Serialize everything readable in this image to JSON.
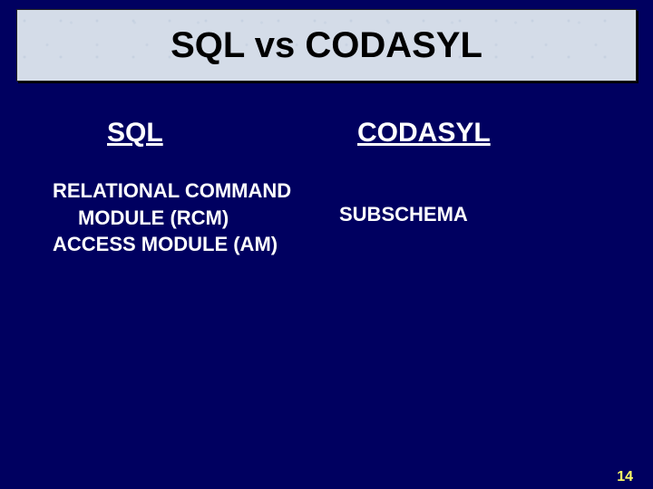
{
  "slide": {
    "title": "SQL vs CODASYL",
    "left": {
      "header": "SQL",
      "line1": "RELATIONAL COMMAND",
      "line2": "MODULE (RCM)",
      "line3": "ACCESS MODULE (AM)"
    },
    "right": {
      "header": "CODASYL",
      "line1": "SUBSCHEMA"
    },
    "page_number": "14",
    "colors": {
      "background": "#000060",
      "title_bg": "#d4dce8",
      "title_text": "#000000",
      "body_text": "#ffffff",
      "page_number": "#ffff66"
    }
  }
}
